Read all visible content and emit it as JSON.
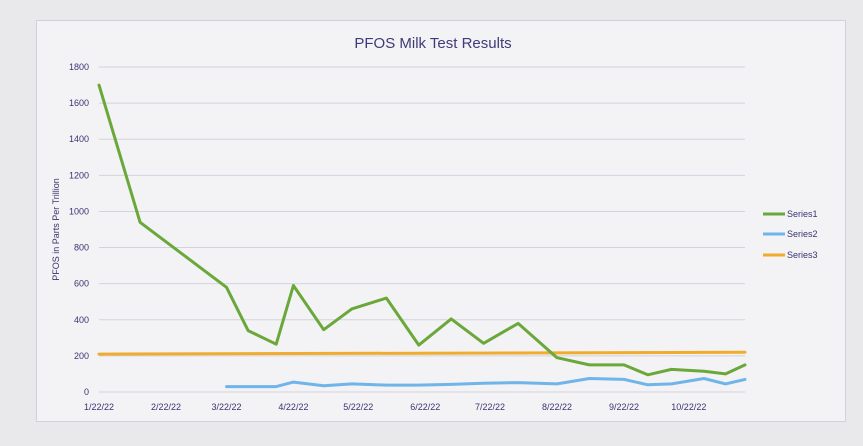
{
  "chart_data": {
    "type": "line",
    "title": "PFOS Milk Test Results",
    "xlabel": "",
    "ylabel": "PFOS in Parts Per Trillion",
    "ylim": [
      0,
      1800
    ],
    "yticks": [
      0,
      200,
      400,
      600,
      800,
      1000,
      1200,
      1400,
      1600,
      1800
    ],
    "xlim": [
      "2022-01-22",
      "2022-11-17"
    ],
    "xticks": [
      "1/22/22",
      "2/22/22",
      "3/22/22",
      "4/22/22",
      "5/22/22",
      "6/22/22",
      "7/22/22",
      "8/22/22",
      "9/22/22",
      "10/22/22"
    ],
    "grid": "horizontal",
    "legend": "right",
    "series": [
      {
        "name": "Series1",
        "color": "#6aa83a",
        "x": [
          "2022-01-22",
          "2022-02-10",
          "2022-03-22",
          "2022-04-01",
          "2022-04-14",
          "2022-04-22",
          "2022-05-06",
          "2022-05-19",
          "2022-06-04",
          "2022-06-19",
          "2022-07-04",
          "2022-07-19",
          "2022-08-04",
          "2022-08-22",
          "2022-09-06",
          "2022-09-22",
          "2022-10-03",
          "2022-10-14",
          "2022-10-29",
          "2022-11-08",
          "2022-11-17"
        ],
        "values": [
          1700,
          940,
          580,
          340,
          265,
          590,
          345,
          460,
          520,
          260,
          405,
          270,
          380,
          190,
          150,
          150,
          95,
          125,
          115,
          100,
          150
        ]
      },
      {
        "name": "Series2",
        "color": "#6fb5ea",
        "x": [
          "2022-03-22",
          "2022-04-14",
          "2022-04-22",
          "2022-05-06",
          "2022-05-19",
          "2022-06-04",
          "2022-06-19",
          "2022-07-04",
          "2022-07-19",
          "2022-08-04",
          "2022-08-22",
          "2022-09-06",
          "2022-09-22",
          "2022-10-03",
          "2022-10-14",
          "2022-10-29",
          "2022-11-08",
          "2022-11-17"
        ],
        "values": [
          30,
          30,
          55,
          35,
          45,
          38,
          38,
          42,
          48,
          52,
          45,
          75,
          70,
          40,
          45,
          75,
          45,
          70
        ]
      },
      {
        "name": "Series3",
        "color": "#f0ac2c",
        "x": [
          "2022-01-22",
          "2022-11-17"
        ],
        "values": [
          210,
          220
        ]
      }
    ]
  }
}
